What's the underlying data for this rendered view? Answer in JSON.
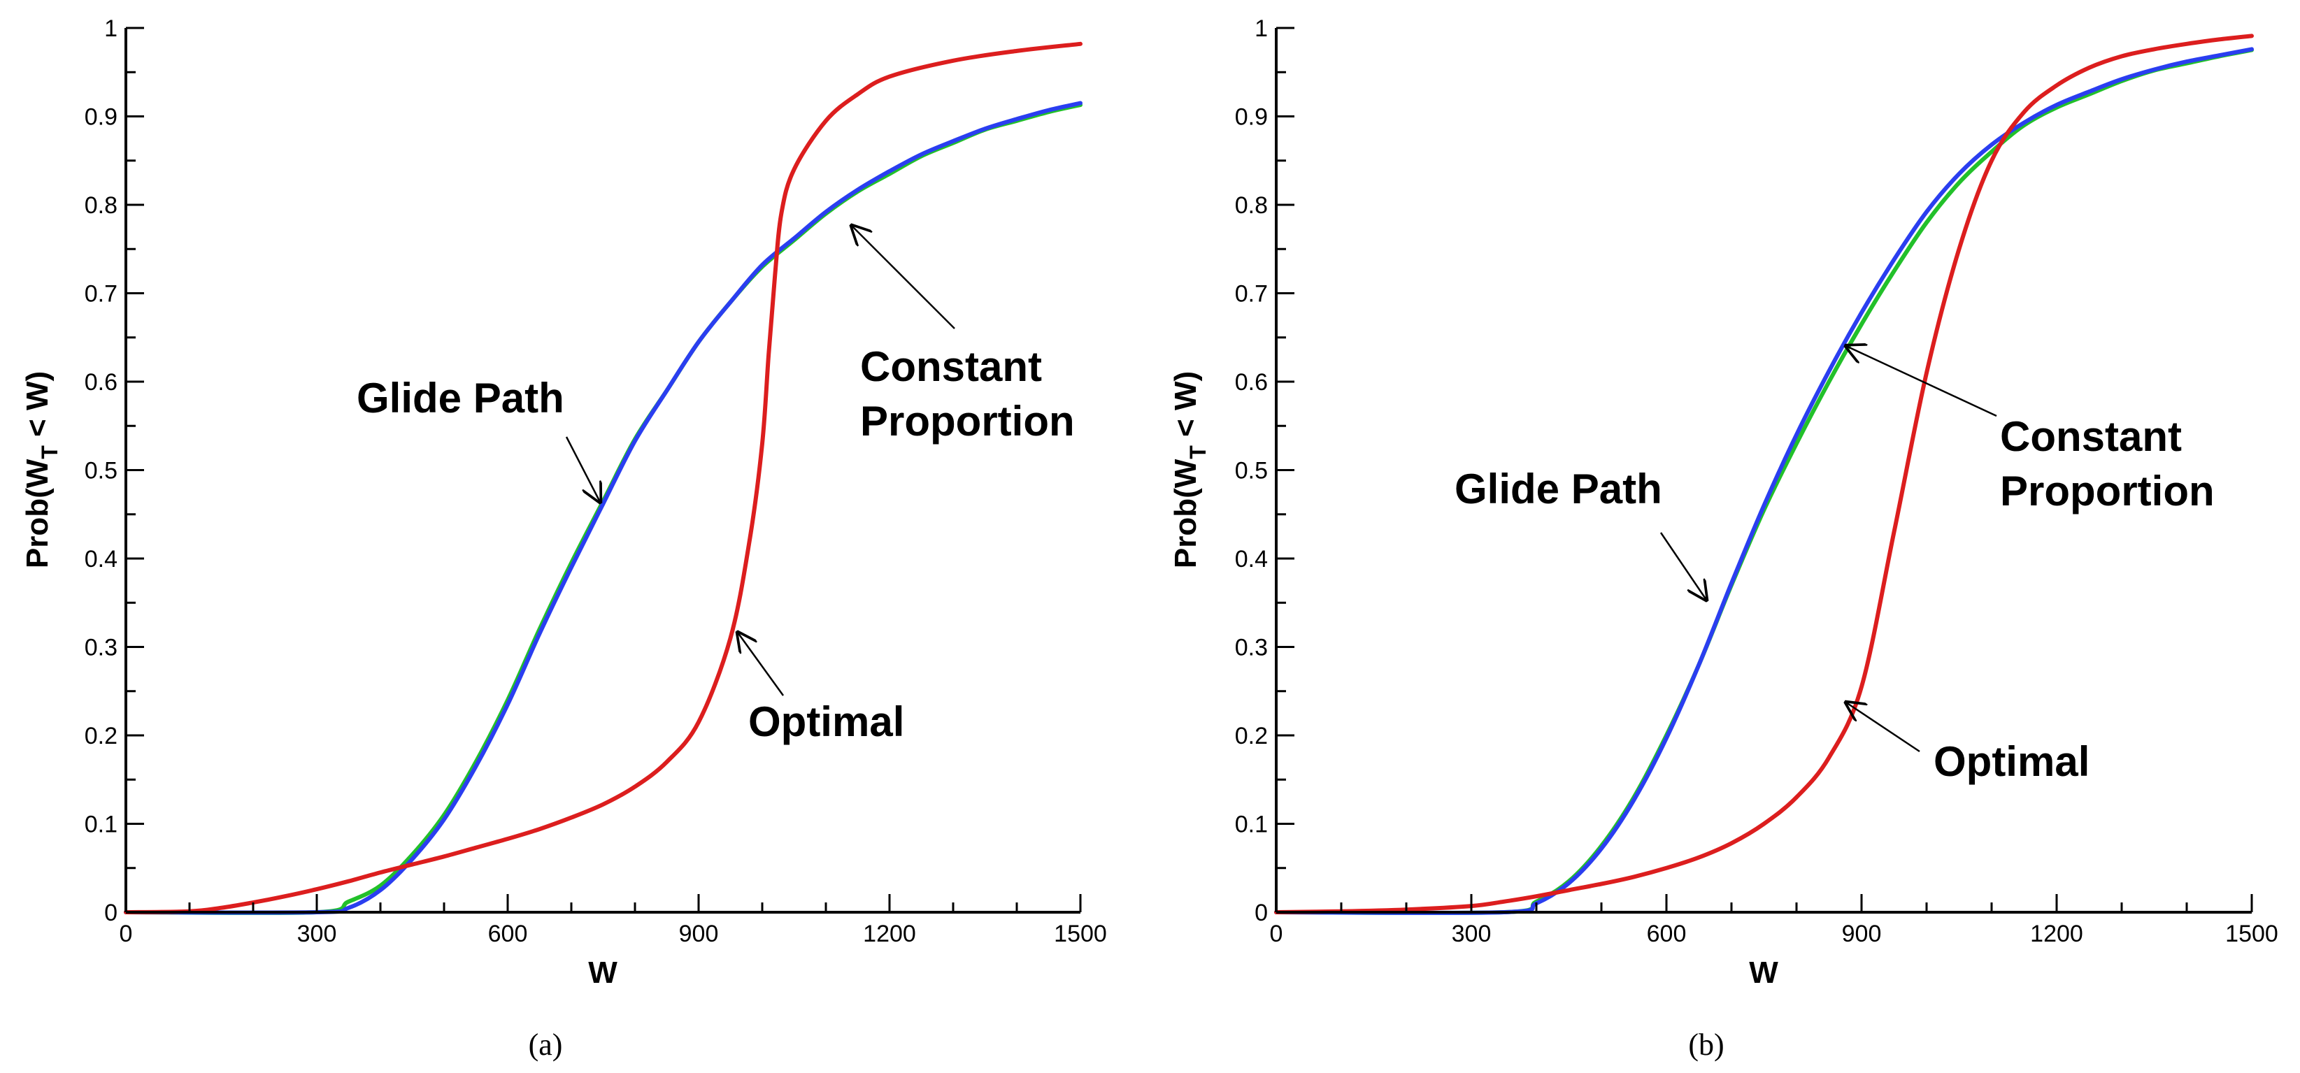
{
  "figure": {
    "panels": [
      "a",
      "b"
    ]
  },
  "chart_data": [
    {
      "type": "line",
      "caption": "(a)",
      "xlabel": "W",
      "ylabel": {
        "main": "Prob(W",
        "sub": "T",
        "rest": " < W)"
      },
      "xlim": [
        0,
        1500
      ],
      "ylim": [
        0,
        1
      ],
      "xticks": [
        0,
        300,
        600,
        900,
        1200,
        1500
      ],
      "xtick_labels": [
        "0",
        "300",
        "600",
        "900",
        "1200",
        "1500"
      ],
      "yticks": [
        0,
        0.1,
        0.2,
        0.3,
        0.4,
        0.5,
        0.6,
        0.7,
        0.8,
        0.9,
        1
      ],
      "ytick_labels": [
        "0",
        "0.1",
        "0.2",
        "0.3",
        "0.4",
        "0.5",
        "0.6",
        "0.7",
        "0.8",
        "0.9",
        "1"
      ],
      "series": [
        {
          "name": "Constant Proportion",
          "color": "#22c02a",
          "x": [
            0,
            300,
            350,
            400,
            450,
            500,
            550,
            600,
            650,
            700,
            750,
            800,
            850,
            900,
            950,
            1000,
            1050,
            1100,
            1150,
            1200,
            1250,
            1300,
            1350,
            1400,
            1450,
            1500
          ],
          "y": [
            0,
            0,
            0.012,
            0.03,
            0.065,
            0.11,
            0.17,
            0.24,
            0.32,
            0.395,
            0.465,
            0.535,
            0.59,
            0.645,
            0.69,
            0.73,
            0.76,
            0.79,
            0.815,
            0.835,
            0.855,
            0.87,
            0.885,
            0.895,
            0.905,
            0.913
          ]
        },
        {
          "name": "Glide Path",
          "color": "#2a3ef0",
          "x": [
            0,
            300,
            350,
            400,
            450,
            500,
            550,
            600,
            650,
            700,
            750,
            800,
            850,
            900,
            950,
            1000,
            1050,
            1100,
            1150,
            1200,
            1250,
            1300,
            1350,
            1400,
            1450,
            1500
          ],
          "y": [
            0,
            0,
            0.005,
            0.025,
            0.06,
            0.105,
            0.165,
            0.235,
            0.315,
            0.39,
            0.462,
            0.533,
            0.59,
            0.645,
            0.69,
            0.732,
            0.762,
            0.792,
            0.817,
            0.838,
            0.857,
            0.872,
            0.886,
            0.897,
            0.907,
            0.915
          ]
        },
        {
          "name": "Optimal",
          "color": "#dc1e1e",
          "x": [
            0,
            100,
            150,
            200,
            250,
            300,
            350,
            400,
            450,
            500,
            550,
            600,
            650,
            700,
            750,
            800,
            850,
            900,
            950,
            980,
            1000,
            1010,
            1020,
            1030,
            1050,
            1100,
            1150,
            1200,
            1300,
            1400,
            1500
          ],
          "y": [
            0,
            0.001,
            0.005,
            0.011,
            0.018,
            0.026,
            0.035,
            0.045,
            0.054,
            0.063,
            0.073,
            0.083,
            0.094,
            0.107,
            0.122,
            0.142,
            0.17,
            0.215,
            0.31,
            0.42,
            0.53,
            0.63,
            0.72,
            0.79,
            0.84,
            0.895,
            0.925,
            0.945,
            0.963,
            0.974,
            0.982
          ]
        }
      ],
      "annotations": [
        {
          "label": "Glide Path",
          "points_to": {
            "x": 765,
            "y": 0.46
          }
        },
        {
          "label_lines": [
            "Constant",
            "Proportion"
          ],
          "points_to": {
            "x": 1140,
            "y": 0.795
          }
        },
        {
          "label": "Optimal",
          "points_to": {
            "x": 965,
            "y": 0.325
          }
        }
      ]
    },
    {
      "type": "line",
      "caption": "(b)",
      "xlabel": "W",
      "ylabel": {
        "main": "Prob(W",
        "sub": "T",
        "rest": " < W)"
      },
      "xlim": [
        0,
        1500
      ],
      "ylim": [
        0,
        1
      ],
      "xticks": [
        0,
        300,
        600,
        900,
        1200,
        1500
      ],
      "xtick_labels": [
        "0",
        "300",
        "600",
        "900",
        "1200",
        "1500"
      ],
      "yticks": [
        0,
        0.1,
        0.2,
        0.3,
        0.4,
        0.5,
        0.6,
        0.7,
        0.8,
        0.9,
        1
      ],
      "ytick_labels": [
        "0",
        "0.1",
        "0.2",
        "0.3",
        "0.4",
        "0.5",
        "0.6",
        "0.7",
        "0.8",
        "0.9",
        "1"
      ],
      "series": [
        {
          "name": "Constant Proportion",
          "color": "#22c02a",
          "x": [
            0,
            350,
            400,
            450,
            500,
            550,
            600,
            650,
            700,
            750,
            800,
            850,
            900,
            950,
            1000,
            1050,
            1100,
            1150,
            1200,
            1250,
            1300,
            1350,
            1400,
            1450,
            1500
          ],
          "y": [
            0,
            0,
            0.012,
            0.035,
            0.075,
            0.13,
            0.2,
            0.28,
            0.37,
            0.455,
            0.53,
            0.6,
            0.665,
            0.725,
            0.78,
            0.825,
            0.86,
            0.89,
            0.91,
            0.925,
            0.94,
            0.952,
            0.96,
            0.968,
            0.975
          ]
        },
        {
          "name": "Glide Path",
          "color": "#2a3ef0",
          "x": [
            0,
            350,
            400,
            450,
            500,
            550,
            600,
            650,
            700,
            750,
            800,
            850,
            900,
            950,
            1000,
            1050,
            1100,
            1150,
            1200,
            1250,
            1300,
            1350,
            1400,
            1450,
            1500
          ],
          "y": [
            0,
            0,
            0.01,
            0.033,
            0.072,
            0.127,
            0.197,
            0.28,
            0.372,
            0.46,
            0.54,
            0.612,
            0.678,
            0.738,
            0.792,
            0.835,
            0.868,
            0.893,
            0.913,
            0.928,
            0.942,
            0.953,
            0.962,
            0.969,
            0.976
          ]
        },
        {
          "name": "Optimal",
          "color": "#dc1e1e",
          "x": [
            0,
            100,
            200,
            300,
            350,
            400,
            450,
            500,
            550,
            600,
            650,
            700,
            750,
            800,
            850,
            900,
            950,
            1000,
            1050,
            1100,
            1150,
            1200,
            1250,
            1300,
            1350,
            1400,
            1450,
            1500
          ],
          "y": [
            0,
            0.001,
            0.003,
            0.007,
            0.012,
            0.018,
            0.025,
            0.032,
            0.04,
            0.05,
            0.062,
            0.078,
            0.1,
            0.13,
            0.175,
            0.255,
            0.43,
            0.61,
            0.75,
            0.85,
            0.905,
            0.935,
            0.955,
            0.968,
            0.976,
            0.982,
            0.987,
            0.991
          ]
        }
      ],
      "annotations": [
        {
          "label": "Glide Path",
          "points_to": {
            "x": 675,
            "y": 0.35
          }
        },
        {
          "label_lines": [
            "Constant",
            "Proportion"
          ],
          "points_to": {
            "x": 880,
            "y": 0.64
          }
        },
        {
          "label": "Optimal",
          "points_to": {
            "x": 880,
            "y": 0.235
          }
        }
      ]
    }
  ]
}
